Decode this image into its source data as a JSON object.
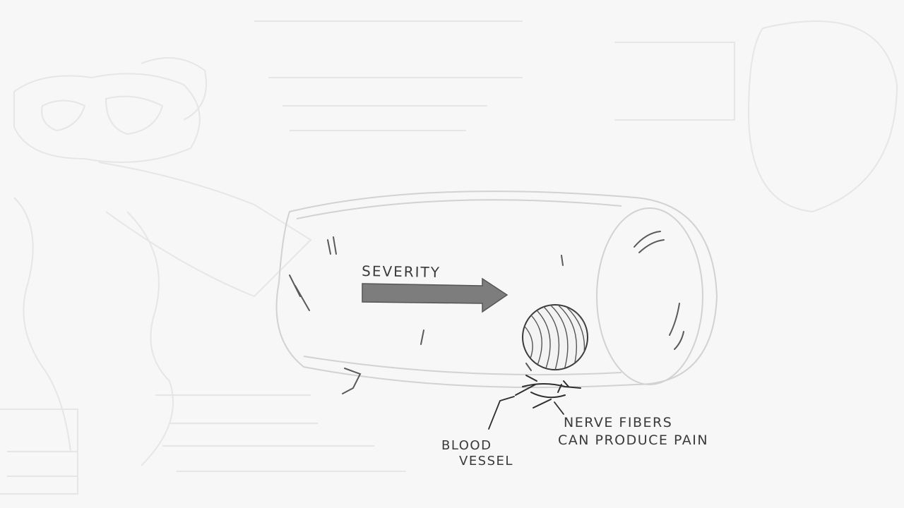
{
  "diagram": {
    "labels": {
      "severity": "SEVERITY",
      "nerve_fibers_line1": "NERVE FIBERS",
      "nerve_fibers_line2": "CAN PRODUCE PAIN",
      "blood_vessel_line1": "BLOOD",
      "blood_vessel_line2": "VESSEL"
    },
    "colors": {
      "background": "#f7f7f7",
      "ink": "#3a3a3a",
      "faded_ink": "#e4e4e4",
      "arrow_fill": "#7d7d7d"
    }
  }
}
